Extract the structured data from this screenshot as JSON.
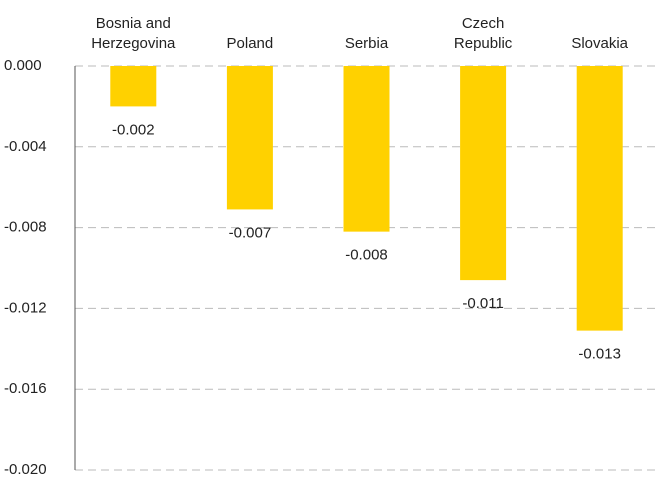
{
  "chart_data": {
    "type": "bar",
    "categories": [
      "Bosnia and Herzegovina",
      "Poland",
      "Serbia",
      "Czech Republic",
      "Slovakia"
    ],
    "values": [
      -0.002,
      -0.0071,
      -0.0082,
      -0.0106,
      -0.0131
    ],
    "value_labels": [
      "-0.002",
      "-0.007",
      "-0.008",
      "-0.011",
      "-0.013"
    ],
    "color": "#ffd100",
    "ylim": [
      0,
      -0.02
    ],
    "yticks": [
      {
        "value": 0,
        "label": "0.000"
      },
      {
        "value": -0.004,
        "label": "-0.004"
      },
      {
        "value": -0.008,
        "label": "-0.008"
      },
      {
        "value": -0.012,
        "label": "-0.012"
      },
      {
        "value": -0.016,
        "label": "-0.016"
      },
      {
        "value": -0.02,
        "label": "-0.020"
      }
    ],
    "grid": true
  }
}
